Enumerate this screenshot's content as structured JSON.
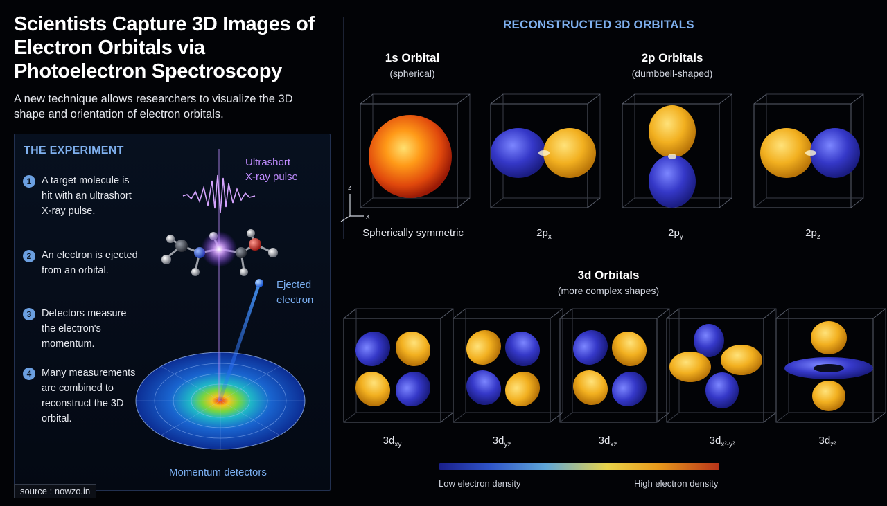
{
  "title": "Scientists Capture 3D Images of Electron Orbitals via Photoelectron Spectroscopy",
  "subtitle": "A new technique allows researchers to visualize the 3D shape and orientation of electron orbitals.",
  "experiment": {
    "heading": "THE EXPERIMENT",
    "steps": [
      {
        "num": "1",
        "text": "A target molecule is hit with an ultrashort X-ray pulse."
      },
      {
        "num": "2",
        "text": "An electron is ejected from an orbital."
      },
      {
        "num": "3",
        "text": "Detectors measure the electron's momentum."
      },
      {
        "num": "4",
        "text": "Many measurements are combined to reconstruct the 3D orbital."
      }
    ],
    "pulse_label_1": "Ultrashort",
    "pulse_label_2": "X-ray pulse",
    "ejected_label_1": "Ejected",
    "ejected_label_2": "electron",
    "detector_label": "Momentum detectors"
  },
  "reconstructed": {
    "heading": "RECONSTRUCTED 3D ORBITALS",
    "s_title": "1s Orbital",
    "s_sub": "(spherical)",
    "s_label": "Spherically symmetric",
    "p_title": "2p Orbitals",
    "p_sub": "(dumbbell-shaped)",
    "p_labels": [
      {
        "main": "2p",
        "sub": "x"
      },
      {
        "main": "2p",
        "sub": "y"
      },
      {
        "main": "2p",
        "sub": "z"
      }
    ],
    "d_title": "3d Orbitals",
    "d_sub": "(more complex shapes)",
    "d_labels": [
      {
        "main": "3d",
        "sub": "xy"
      },
      {
        "main": "3d",
        "sub": "yz"
      },
      {
        "main": "3d",
        "sub": "xz"
      },
      {
        "main": "3d",
        "sub": "x²-y²"
      },
      {
        "main": "3d",
        "sub": "z²"
      }
    ],
    "axis_z": "z",
    "axis_x": "x"
  },
  "legend": {
    "low": "Low electron density",
    "high": "High electron density"
  },
  "source": "source : nowzo.in",
  "colors": {
    "accent_blue": "#7fb0ee",
    "positive_lobe": "#f0b020",
    "negative_lobe": "#3538c8",
    "pulse_purple": "#c08cff"
  }
}
